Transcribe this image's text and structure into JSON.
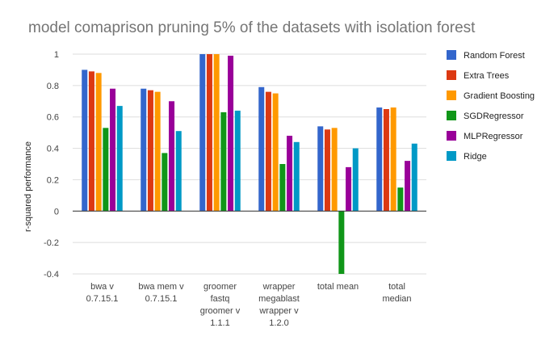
{
  "chart_data": {
    "type": "bar",
    "title": "model comaprison pruning 5% of the datasets with isolation forest",
    "xlabel": "",
    "ylabel": "r-squared performance",
    "ylim": [
      -0.4,
      1.0
    ],
    "yticks": [
      "1",
      "0.8",
      "0.6",
      "0.4",
      "0.2",
      "0",
      "-0.2",
      "-0.4"
    ],
    "grid": true,
    "legend_position": "right",
    "categories": [
      [
        "bwa v",
        "0.7.15.1"
      ],
      [
        "bwa mem v",
        "0.7.15.1"
      ],
      [
        "groomer",
        "fastq",
        "groomer v",
        "1.1.1"
      ],
      [
        "wrapper",
        "megablast",
        "wrapper v",
        "1.2.0"
      ],
      [
        "total mean"
      ],
      [
        "total",
        "median"
      ]
    ],
    "series": [
      {
        "name": "Random Forest",
        "color": "#3366cc",
        "values": [
          0.9,
          0.78,
          1.0,
          0.79,
          0.54,
          0.66
        ]
      },
      {
        "name": "Extra Trees",
        "color": "#dc3912",
        "values": [
          0.89,
          0.77,
          1.0,
          0.76,
          0.52,
          0.65
        ]
      },
      {
        "name": "Gradient Boosting",
        "color": "#ff9900",
        "values": [
          0.88,
          0.76,
          1.0,
          0.75,
          0.53,
          0.66
        ]
      },
      {
        "name": "SGDRegressor",
        "color": "#109618",
        "values": [
          0.53,
          0.37,
          0.63,
          0.3,
          -0.4,
          0.15
        ]
      },
      {
        "name": "MLPRegressor",
        "color": "#990099",
        "values": [
          0.78,
          0.7,
          0.99,
          0.48,
          0.28,
          0.32
        ]
      },
      {
        "name": "Ridge",
        "color": "#0099c6",
        "values": [
          0.67,
          0.51,
          0.64,
          0.44,
          0.4,
          0.43
        ]
      }
    ]
  }
}
